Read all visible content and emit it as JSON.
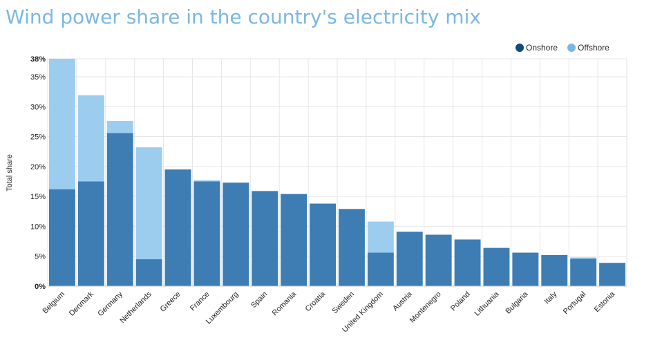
{
  "chart_data": {
    "type": "bar",
    "stacked": true,
    "title": "Wind power share in the country's electricity mix",
    "xlabel": "",
    "ylabel": "Total share",
    "ylim": [
      0,
      38
    ],
    "yticks": [
      0,
      5,
      10,
      15,
      20,
      25,
      30,
      35,
      38
    ],
    "ytick_labels": [
      "0%",
      "5%",
      "10%",
      "15%",
      "20%",
      "25%",
      "30%",
      "35%",
      "38%"
    ],
    "grid": true,
    "legend_position": "top-right",
    "categories": [
      "Belgium",
      "Denmark",
      "Germany",
      "Netherlands",
      "Greece",
      "France",
      "Luxembourg",
      "Spain",
      "Romania",
      "Croatia",
      "Sweden",
      "United Kingdom",
      "Austria",
      "Montenegro",
      "Poland",
      "Lithuania",
      "Bulgaria",
      "Italy",
      "Portugal",
      "Estonia"
    ],
    "series": [
      {
        "name": "Onshore",
        "color": "#3d7db3",
        "values": [
          16.2,
          17.5,
          25.6,
          4.5,
          19.5,
          17.5,
          17.3,
          15.9,
          15.4,
          13.8,
          12.9,
          5.6,
          9.1,
          8.6,
          7.8,
          6.4,
          5.6,
          5.2,
          4.6,
          3.9
        ]
      },
      {
        "name": "Offshore",
        "color": "#9ccdee",
        "values": [
          21.8,
          14.4,
          2.0,
          18.7,
          0,
          0.2,
          0,
          0,
          0,
          0,
          0,
          5.2,
          0,
          0,
          0,
          0,
          0,
          0,
          0.2,
          0
        ]
      }
    ],
    "legend_colors": {
      "Onshore": "#0d4a84",
      "Offshore": "#7ab8e0"
    }
  }
}
